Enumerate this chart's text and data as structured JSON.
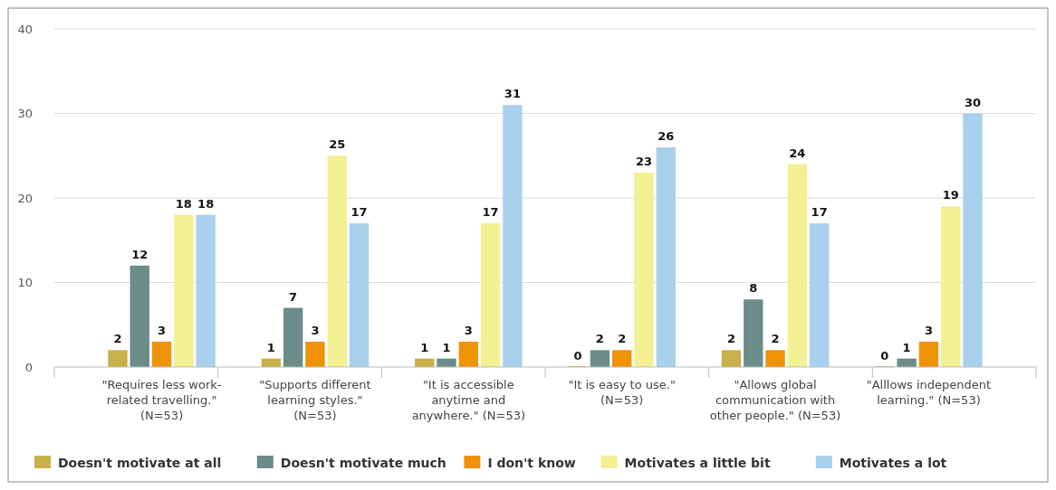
{
  "chart_data": {
    "type": "bar",
    "categories": [
      "\"Requires less work-related travelling.\" (N=53)",
      "\"Supports different learning styles.\" (N=53)",
      "\"It is accessible anytime and anywhere.\" (N=53)",
      "\"It is easy to use.\" (N=53)",
      "\"Allows global communication with other people.\" (N=53)",
      "\"Alllows independent learning.\" (N=53)"
    ],
    "series": [
      {
        "name": "Doesn't motivate at all",
        "color": "#c8b04a",
        "values": [
          2,
          1,
          1,
          0,
          2,
          0
        ]
      },
      {
        "name": "Doesn't motivate much",
        "color": "#6b8c89",
        "values": [
          12,
          7,
          1,
          2,
          8,
          1
        ]
      },
      {
        "name": "I don't know",
        "color": "#ee9206",
        "values": [
          3,
          3,
          3,
          2,
          2,
          3
        ]
      },
      {
        "name": "Motivates a little bit",
        "color": "#f3ef93",
        "values": [
          18,
          25,
          17,
          23,
          24,
          19
        ]
      },
      {
        "name": "Motivates a lot",
        "color": "#a9d0ec",
        "values": [
          18,
          17,
          31,
          26,
          17,
          30
        ]
      }
    ],
    "ylim": [
      0,
      40
    ],
    "yticks": [
      0,
      10,
      20,
      30,
      40
    ],
    "grid": "y",
    "legend": "bottom",
    "data_labels": true
  }
}
